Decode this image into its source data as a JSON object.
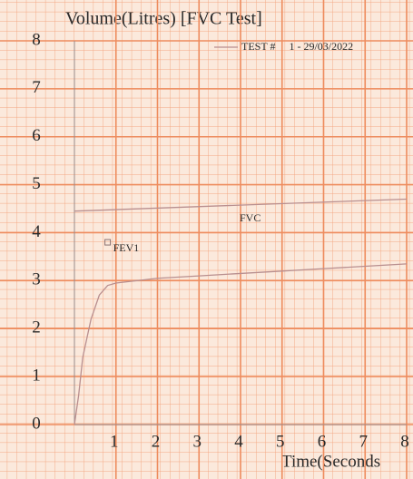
{
  "chart_data": {
    "type": "line",
    "title": "Volume(Litres)   [FVC Test]",
    "x_label": "Time(Seconds",
    "xlim": [
      0,
      8
    ],
    "xticks": [
      1,
      2,
      3,
      4,
      5,
      6,
      7,
      8
    ],
    "ylim": [
      0,
      8
    ],
    "yticks": [
      0,
      1,
      2,
      3,
      4,
      5,
      6,
      7,
      8
    ],
    "grid": true,
    "legend": "top-right",
    "x": [
      0,
      0.1,
      0.2,
      0.4,
      0.6,
      0.8,
      1,
      1.5,
      2,
      3,
      4,
      5,
      6,
      7,
      8
    ],
    "series": [
      {
        "name": "TEST #     1 - 29/03/2022",
        "color": "#b98f8f",
        "values": [
          0,
          0.6,
          1.4,
          2.2,
          2.7,
          2.9,
          2.95,
          3.0,
          3.05,
          3.1,
          3.15,
          3.2,
          3.25,
          3.3,
          3.35
        ]
      }
    ],
    "fvc_line": {
      "label": "FVC",
      "x": [
        0,
        8
      ],
      "values": [
        4.45,
        4.7
      ],
      "color": "#b98f8f"
    },
    "fev1": {
      "label": "FEV1",
      "x": 0.8,
      "value": 3.8
    }
  }
}
